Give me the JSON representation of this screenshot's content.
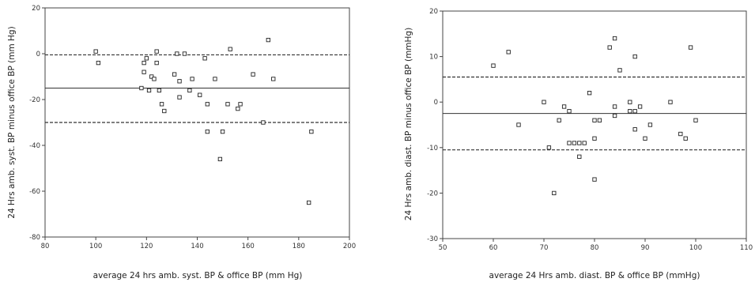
{
  "chart_data": [
    {
      "type": "scatter",
      "title": "",
      "xlabel": "average 24 hrs amb. syst. BP & office BP (mm Hg)",
      "ylabel": "24 Hrs amb. syst. BP minus office BP (mm Hg)",
      "xlim": [
        80,
        200
      ],
      "ylim": [
        -80,
        20
      ],
      "xticks": [
        "80",
        "100",
        "120",
        "140",
        "160",
        "180",
        "200"
      ],
      "yticks": [
        "20",
        "0",
        "-20",
        "-40",
        "-60",
        "-80"
      ],
      "grid": false,
      "reference_lines": {
        "mean": -15,
        "upper_limit": -0.5,
        "lower_limit": -30
      },
      "points": [
        [
          100,
          1
        ],
        [
          101,
          -4
        ],
        [
          118,
          -15
        ],
        [
          119,
          -8
        ],
        [
          119,
          -4
        ],
        [
          120,
          -2
        ],
        [
          121,
          -16
        ],
        [
          122,
          -10
        ],
        [
          123,
          -11
        ],
        [
          124,
          1
        ],
        [
          124,
          -4
        ],
        [
          125,
          -16
        ],
        [
          126,
          -22
        ],
        [
          127,
          -25
        ],
        [
          131,
          -9
        ],
        [
          132,
          0
        ],
        [
          133,
          -12
        ],
        [
          133,
          -19
        ],
        [
          135,
          0
        ],
        [
          137,
          -16
        ],
        [
          138,
          -11
        ],
        [
          141,
          -18
        ],
        [
          143,
          -2
        ],
        [
          144,
          -22
        ],
        [
          144,
          -34
        ],
        [
          147,
          -11
        ],
        [
          149,
          -46
        ],
        [
          150,
          -34
        ],
        [
          152,
          -22
        ],
        [
          153,
          2
        ],
        [
          156,
          -24
        ],
        [
          157,
          -22
        ],
        [
          162,
          -9
        ],
        [
          166,
          -30
        ],
        [
          168,
          6
        ],
        [
          170,
          -11
        ],
        [
          184,
          -65
        ],
        [
          185,
          -34
        ]
      ]
    },
    {
      "type": "scatter",
      "title": "",
      "xlabel": "average 24 Hrs amb. diast. BP & office BP (mmHg)",
      "ylabel": "24 Hrs amb. diast. BP minus office BP (mmHg)",
      "xlim": [
        50,
        110
      ],
      "ylim": [
        -30,
        20
      ],
      "xticks": [
        "50",
        "60",
        "70",
        "80",
        "90",
        "100",
        "110"
      ],
      "yticks": [
        "20",
        "10",
        "0",
        "-10",
        "-20",
        "-30"
      ],
      "grid": false,
      "reference_lines": {
        "mean": -2.5,
        "upper_limit": 5.5,
        "lower_limit": -10.5
      },
      "points": [
        [
          60,
          8
        ],
        [
          63,
          11
        ],
        [
          65,
          -5
        ],
        [
          70,
          0
        ],
        [
          71,
          -10
        ],
        [
          72,
          -20
        ],
        [
          73,
          -4
        ],
        [
          74,
          -1
        ],
        [
          75,
          -9
        ],
        [
          75,
          -2
        ],
        [
          76,
          -9
        ],
        [
          77,
          -12
        ],
        [
          77,
          -9
        ],
        [
          78,
          -9
        ],
        [
          79,
          2
        ],
        [
          80,
          -8
        ],
        [
          80,
          -4
        ],
        [
          80,
          -17
        ],
        [
          81,
          -4
        ],
        [
          83,
          12
        ],
        [
          84,
          14
        ],
        [
          84,
          -1
        ],
        [
          84,
          -3
        ],
        [
          85,
          7
        ],
        [
          87,
          0
        ],
        [
          87,
          -2
        ],
        [
          88,
          10
        ],
        [
          88,
          -6
        ],
        [
          88,
          -2
        ],
        [
          89,
          -1
        ],
        [
          90,
          -8
        ],
        [
          91,
          -5
        ],
        [
          95,
          0
        ],
        [
          97,
          -7
        ],
        [
          98,
          -8
        ],
        [
          99,
          12
        ],
        [
          100,
          -4
        ]
      ]
    }
  ]
}
